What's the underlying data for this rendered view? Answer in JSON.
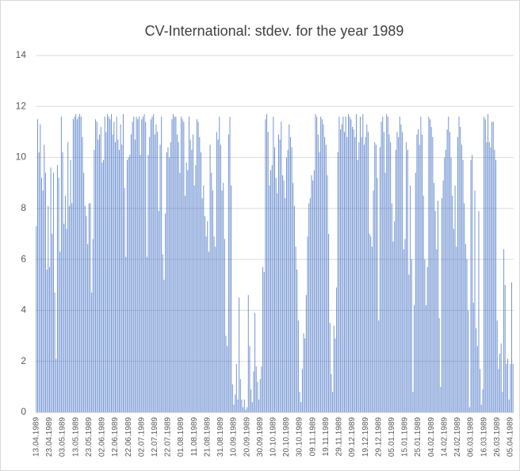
{
  "chart_data": {
    "type": "bar",
    "title": "CV-International: stdev. for the year 1989",
    "categories": [
      "13.04.1989",
      null,
      null,
      null,
      null,
      null,
      null,
      null,
      null,
      null,
      "23.04.1989",
      null,
      null,
      null,
      null,
      null,
      null,
      null,
      null,
      null,
      "03.05.1989",
      null,
      null,
      null,
      null,
      null,
      null,
      null,
      null,
      null,
      "13.05.1989",
      null,
      null,
      null,
      null,
      null,
      null,
      null,
      null,
      null,
      "23.05.1989",
      null,
      null,
      null,
      null,
      null,
      null,
      null,
      null,
      null,
      "02.06.1989",
      null,
      null,
      null,
      null,
      null,
      null,
      null,
      null,
      null,
      "12.06.1989",
      null,
      null,
      null,
      null,
      null,
      null,
      null,
      null,
      null,
      "22.06.1989",
      null,
      null,
      null,
      null,
      null,
      null,
      null,
      null,
      null,
      "02.07.1989",
      null,
      null,
      null,
      null,
      null,
      null,
      null,
      null,
      null,
      "12.07.1989",
      null,
      null,
      null,
      null,
      null,
      null,
      null,
      null,
      null,
      "22.07.1989",
      null,
      null,
      null,
      null,
      null,
      null,
      null,
      null,
      null,
      "01.08.1989",
      null,
      null,
      null,
      null,
      null,
      null,
      null,
      null,
      null,
      "11.08.1989",
      null,
      null,
      null,
      null,
      null,
      null,
      null,
      null,
      null,
      "21.08.1989",
      null,
      null,
      null,
      null,
      null,
      null,
      null,
      null,
      null,
      "31.08.1989",
      null,
      null,
      null,
      null,
      null,
      null,
      null,
      null,
      null,
      "10.09.1989",
      null,
      null,
      null,
      null,
      null,
      null,
      null,
      null,
      null,
      "20.09.1989",
      null,
      null,
      null,
      null,
      null,
      null,
      null,
      null,
      null,
      "30.09.1989",
      null,
      null,
      null,
      null,
      null,
      null,
      null,
      null,
      null,
      "10.10.1989",
      null,
      null,
      null,
      null,
      null,
      null,
      null,
      null,
      null,
      "20.10.1989",
      null,
      null,
      null,
      null,
      null,
      null,
      null,
      null,
      null,
      "30.10.1989",
      null,
      null,
      null,
      null,
      null,
      null,
      null,
      null,
      null,
      "09.11.1989",
      null,
      null,
      null,
      null,
      null,
      null,
      null,
      null,
      null,
      "19.11.1989",
      null,
      null,
      null,
      null,
      null,
      null,
      null,
      null,
      null,
      "29.11.1989",
      null,
      null,
      null,
      null,
      null,
      null,
      null,
      null,
      null,
      "09.12.1989",
      null,
      null,
      null,
      null,
      null,
      null,
      null,
      null,
      null,
      "19.12.1989",
      null,
      null,
      null,
      null,
      null,
      null,
      null,
      null,
      null,
      "29.12.1989",
      null,
      null,
      null,
      null,
      null,
      null,
      null,
      null,
      null,
      "05.01.1989",
      null,
      null,
      null,
      null,
      null,
      null,
      null,
      null,
      null,
      "15.01.1989",
      null,
      null,
      null,
      null,
      null,
      null,
      null,
      null,
      null,
      "25.01.1989",
      null,
      null,
      null,
      null,
      null,
      null,
      null,
      null,
      null,
      "04.02.1989",
      null,
      null,
      null,
      null,
      null,
      null,
      null,
      null,
      null,
      "14.02.1989",
      null,
      null,
      null,
      null,
      null,
      null,
      null,
      null,
      null,
      "24.02.1989",
      null,
      null,
      null,
      null,
      null,
      null,
      null,
      null,
      null,
      "06.03.1989",
      null,
      null,
      null,
      null,
      null,
      null,
      null,
      null,
      null,
      "16.03.1989",
      null,
      null,
      null,
      null,
      null,
      null,
      null,
      null,
      null,
      "26.03.1989",
      null,
      null,
      null,
      null,
      null,
      null,
      null,
      null,
      null,
      "05.04.1989",
      null,
      null
    ],
    "values": [
      7.3,
      11.5,
      10.2,
      11.3,
      9.2,
      8.7,
      10.5,
      9.4,
      5.6,
      8.1,
      5.7,
      9.6,
      7.0,
      9.4,
      4.7,
      2.1,
      9.7,
      9.2,
      6.3,
      11.6,
      10.2,
      7.4,
      8.5,
      7.2,
      10.6,
      8.1,
      9.9,
      8.2,
      11.5,
      11.6,
      11.7,
      11.5,
      11.6,
      11.7,
      11.6,
      10.8,
      9.4,
      8.1,
      7.7,
      6.6,
      8.2,
      8.2,
      4.7,
      6.8,
      10.3,
      11.5,
      11.4,
      10.7,
      10.9,
      11.2,
      9.8,
      9.9,
      11.6,
      11.0,
      11.7,
      11.6,
      11.5,
      11.7,
      10.9,
      11.4,
      10.6,
      11.6,
      10.7,
      10.3,
      11.3,
      10.5,
      11.7,
      8.8,
      6.1,
      9.9,
      10.0,
      10.1,
      10.9,
      11.4,
      11.6,
      10.7,
      11.6,
      11.5,
      11.6,
      10.1,
      11.5,
      11.6,
      11.7,
      11.4,
      6.1,
      10.1,
      10.8,
      11.5,
      11.6,
      11.7,
      10.9,
      11.3,
      11.0,
      7.9,
      10.5,
      11.6,
      6.2,
      5.2,
      7.8,
      10.2,
      10.4,
      10.0,
      10.6,
      11.5,
      11.7,
      11.6,
      11.6,
      10.9,
      10.6,
      9.4,
      11.6,
      11.5,
      11.4,
      8.5,
      9.8,
      9.5,
      11.6,
      10.7,
      10.3,
      10.9,
      8.9,
      9.7,
      11.5,
      11.4,
      10.8,
      10.2,
      8.4,
      8.9,
      7.7,
      6.9,
      7.5,
      6.3,
      10.5,
      9.4,
      8.7,
      6.9,
      6.5,
      11.0,
      10.7,
      11.6,
      10.5,
      8.7,
      9.0,
      6.8,
      3.0,
      2.6,
      10.9,
      11.6,
      8.9,
      1.1,
      0.3,
      0.7,
      1.9,
      0.5,
      4.5,
      1.3,
      0.5,
      0.2,
      0.5,
      0.1,
      0.2,
      4.6,
      2.6,
      0.9,
      0.4,
      1.6,
      3.9,
      1.8,
      1.2,
      0.5,
      1.3,
      1.8,
      5.7,
      5.5,
      11.5,
      11.7,
      11.0,
      8.9,
      9.5,
      9.7,
      11.6,
      10.4,
      9.2,
      8.6,
      10.9,
      10.7,
      11.4,
      9.3,
      9.1,
      8.4,
      10.0,
      10.3,
      11.3,
      10.8,
      10.4,
      9.0,
      8.1,
      6.5,
      5.6,
      3.6,
      0.8,
      0.4,
      1.7,
      3.1,
      2.9,
      4.6,
      6.9,
      8.2,
      8.4,
      9.3,
      9.1,
      9.5,
      11.7,
      11.6,
      10.9,
      10.2,
      11.6,
      11.5,
      11.3,
      10.8,
      10.5,
      9.3,
      7.0,
      3.5,
      1.5,
      0.8,
      3.4,
      2.9,
      4.9,
      10.2,
      11.6,
      11.1,
      11.3,
      11.6,
      11.0,
      11.6,
      10.8,
      11.7,
      11.6,
      11.5,
      11.2,
      11.1,
      10.8,
      11.7,
      9.9,
      10.6,
      11.6,
      10.8,
      11.7,
      10.5,
      10.8,
      11.3,
      11.0,
      7.0,
      6.9,
      6.5,
      8.7,
      10.6,
      10.5,
      9.2,
      3.6,
      10.4,
      11.4,
      11.6,
      11.0,
      9.4,
      11.7,
      11.6,
      10.9,
      10.6,
      8.2,
      6.7,
      7.5,
      10.3,
      11.0,
      10.8,
      11.6,
      11.3,
      11.0,
      6.4,
      6.8,
      10.6,
      10.3,
      5.4,
      8.9,
      6.0,
      0.8,
      4.2,
      9.4,
      10.9,
      11.1,
      10.5,
      11.6,
      10.9,
      8.5,
      6.0,
      4.2,
      5.7,
      11.6,
      11.5,
      11.2,
      10.8,
      9.0,
      7.9,
      6.4,
      8.3,
      3.7,
      1.0,
      8.4,
      9.1,
      10.0,
      10.3,
      11.1,
      11.6,
      11.0,
      10.0,
      8.5,
      7.2,
      8.9,
      6.5,
      10.8,
      11.6,
      11.2,
      10.5,
      9.9,
      8.2,
      6.6,
      6.0,
      4.0,
      0.2,
      9.9,
      10.1,
      4.3,
      8.7,
      3.3,
      2.6,
      7.9,
      1.7,
      0.3,
      0.9,
      11.6,
      11.5,
      10.6,
      11.7,
      10.6,
      10.4,
      11.4,
      11.4,
      10.3,
      9.9,
      3.6,
      1.7,
      2.3,
      2.7,
      0.8,
      6.4,
      5.0,
      1.9,
      2.1,
      0.5,
      1.9,
      5.1,
      1.9
    ],
    "color": "#4472c4",
    "ylim": [
      0,
      14
    ],
    "yticks": [
      0,
      2,
      4,
      6,
      8,
      10,
      12,
      14
    ],
    "grid": true
  }
}
